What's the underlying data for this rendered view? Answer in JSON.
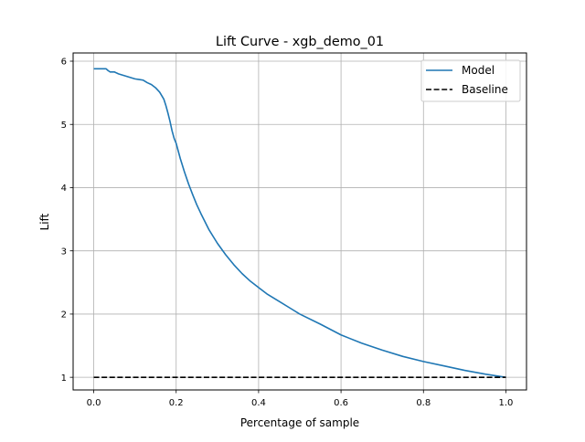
{
  "chart_data": {
    "type": "line",
    "title": "Lift Curve - xgb_demo_01",
    "xlabel": "Percentage of sample",
    "ylabel": "Lift",
    "xlim": [
      -0.05,
      1.05
    ],
    "ylim": [
      0.8,
      6.13
    ],
    "xticks": [
      0.0,
      0.2,
      0.4,
      0.6,
      0.8,
      1.0
    ],
    "xtick_labels": [
      "0.0",
      "0.2",
      "0.4",
      "0.6",
      "0.8",
      "1.0"
    ],
    "yticks": [
      1,
      2,
      3,
      4,
      5,
      6
    ],
    "ytick_labels": [
      "1",
      "2",
      "3",
      "4",
      "5",
      "6"
    ],
    "grid": true,
    "legend_position": "top-right",
    "series": [
      {
        "name": "Model",
        "color": "#1f77b4",
        "style": "solid",
        "x": [
          0.0,
          0.01,
          0.02,
          0.03,
          0.035,
          0.04,
          0.05,
          0.06,
          0.07,
          0.08,
          0.09,
          0.1,
          0.11,
          0.12,
          0.13,
          0.14,
          0.15,
          0.16,
          0.17,
          0.175,
          0.18,
          0.185,
          0.19,
          0.195,
          0.2,
          0.21,
          0.22,
          0.23,
          0.24,
          0.25,
          0.26,
          0.28,
          0.3,
          0.32,
          0.34,
          0.36,
          0.38,
          0.4,
          0.42,
          0.45,
          0.48,
          0.5,
          0.55,
          0.6,
          0.65,
          0.7,
          0.75,
          0.8,
          0.85,
          0.9,
          0.95,
          1.0
        ],
        "y": [
          5.88,
          5.88,
          5.88,
          5.88,
          5.85,
          5.83,
          5.83,
          5.8,
          5.78,
          5.76,
          5.74,
          5.72,
          5.71,
          5.7,
          5.66,
          5.63,
          5.58,
          5.51,
          5.4,
          5.3,
          5.18,
          5.05,
          4.9,
          4.78,
          4.7,
          4.46,
          4.25,
          4.06,
          3.89,
          3.73,
          3.59,
          3.33,
          3.12,
          2.94,
          2.78,
          2.64,
          2.52,
          2.42,
          2.32,
          2.2,
          2.08,
          2.0,
          1.84,
          1.67,
          1.54,
          1.43,
          1.33,
          1.25,
          1.18,
          1.11,
          1.05,
          1.0
        ]
      },
      {
        "name": "Baseline",
        "color": "#000000",
        "style": "dashed",
        "x": [
          0.0,
          1.0
        ],
        "y": [
          1.0,
          1.0
        ]
      }
    ]
  }
}
